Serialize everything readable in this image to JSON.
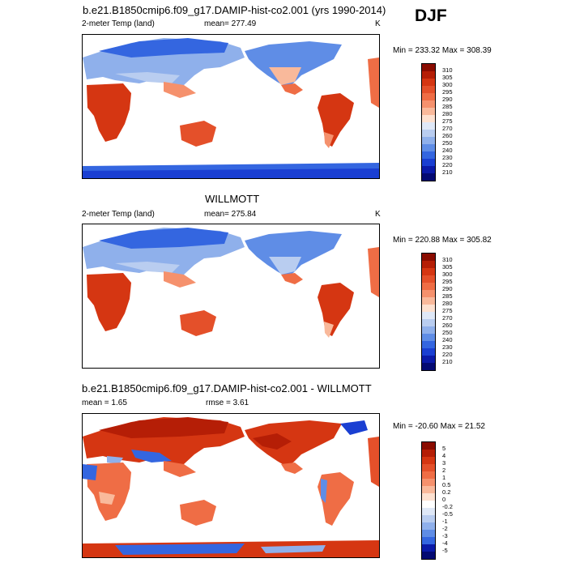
{
  "main_title": "b.e21.B1850cmip6.f09_g17.DAMIP-hist-co2.001 (yrs 1990-2014)",
  "season": "DJF",
  "panels": [
    {
      "title": "",
      "left": "2-meter Temp (land)",
      "center": "mean= 277.49",
      "right": "K",
      "minmax": "Min = 233.32 Max = 308.39",
      "colorbar": {
        "labels": [
          "310",
          "305",
          "300",
          "295",
          "290",
          "285",
          "280",
          "275",
          "270",
          "260",
          "250",
          "240",
          "230",
          "220",
          "210"
        ],
        "colors": [
          "#8a0c00",
          "#b51e06",
          "#d53612",
          "#e4502a",
          "#ef6d45",
          "#f5916d",
          "#f9b99b",
          "#fde1d0",
          "#dfe8f7",
          "#b9cdf0",
          "#8fb0eb",
          "#5f8de6",
          "#3466e0",
          "#1a3fd2",
          "#0b1aa8",
          "#040a72"
        ]
      }
    },
    {
      "title": "WILLMOTT",
      "left": "2-meter Temp (land)",
      "center": "mean= 275.84",
      "right": "K",
      "minmax": "Min = 220.88 Max = 305.82",
      "colorbar": {
        "labels": [
          "310",
          "305",
          "300",
          "295",
          "290",
          "285",
          "280",
          "275",
          "270",
          "260",
          "250",
          "240",
          "230",
          "220",
          "210"
        ],
        "colors": [
          "#8a0c00",
          "#b51e06",
          "#d53612",
          "#e4502a",
          "#ef6d45",
          "#f5916d",
          "#f9b99b",
          "#fde1d0",
          "#dfe8f7",
          "#b9cdf0",
          "#8fb0eb",
          "#5f8de6",
          "#3466e0",
          "#1a3fd2",
          "#0b1aa8",
          "#040a72"
        ]
      }
    },
    {
      "title": "b.e21.B1850cmip6.f09_g17.DAMIP-hist-co2.001 - WILLMOTT",
      "left": "mean =  1.65",
      "center": "rmse =   3.61",
      "right": "",
      "minmax": "Min = -20.60 Max =  21.52",
      "colorbar": {
        "labels": [
          "5",
          "4",
          "3",
          "2",
          "1",
          "0.5",
          "0.2",
          "0",
          "-0.2",
          "-0.5",
          "-1",
          "-2",
          "-3",
          "-4",
          "-5"
        ],
        "colors": [
          "#8a0c00",
          "#b51e06",
          "#d53612",
          "#e4502a",
          "#ef6d45",
          "#f5916d",
          "#f9b99b",
          "#fde1d0",
          "#ffffff",
          "#dfe8f7",
          "#b9cdf0",
          "#8fb0eb",
          "#5f8de6",
          "#3466e0",
          "#0b1aa8",
          "#040a72"
        ]
      }
    }
  ]
}
